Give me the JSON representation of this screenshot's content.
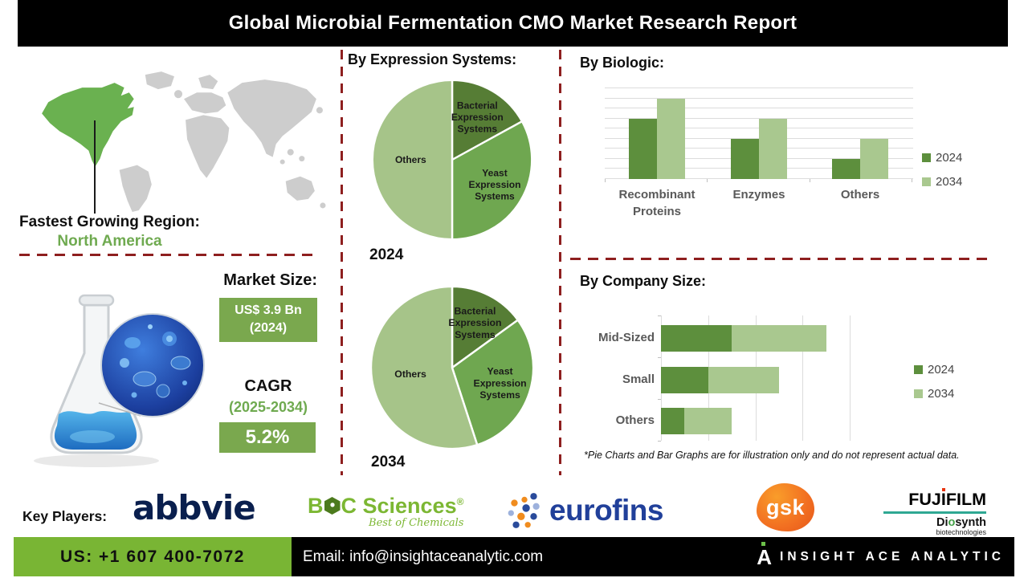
{
  "title": "Global Microbial Fermentation CMO Market Research Report",
  "region": {
    "label": "Fastest Growing Region:",
    "value": "North America"
  },
  "market": {
    "heading": "Market Size:",
    "size_value": "US$ 3.9 Bn",
    "size_year": "(2024)",
    "cagr_label": "CAGR",
    "cagr_period": "(2025-2034)",
    "cagr_value": "5.2%"
  },
  "sections": {
    "expression": "By Expression Systems:",
    "biologic": "By Biologic:",
    "company": "By Company Size:"
  },
  "disclaimer": "*Pie Charts and Bar Graphs are for illustration only and do not represent actual data.",
  "key_players": {
    "label": "Key Players:",
    "abbvie": "abbvie",
    "boc_b": "B",
    "boc_c": "C Sciences",
    "boc_reg": "®",
    "boc_tagline": "Best of Chemicals",
    "eurofins": "eurofins",
    "gsk": "gsk",
    "fuji_a": "FUJ",
    "fuji_i": "I",
    "fuji_b": "FILM",
    "diosynth_a": "Di",
    "diosynth_o": "o",
    "diosynth_b": "synth",
    "diosynth_sub": "biotechnologies"
  },
  "footer": {
    "phone": "US: +1 607 400-7072",
    "email": "Email: info@insightaceanalytic.com",
    "brand": "INSIGHT ACE ANALYTIC",
    "logo_letter": "A"
  },
  "colors": {
    "pie_green_dark": "#567d35",
    "pie_green_mid": "#6fa750",
    "pie_green_light": "#a6c489",
    "bar_green_2024": "#5d8f3d",
    "bar_green_2034": "#a9c88f",
    "divider_red": "#8e1f1f",
    "footer_green": "#79b534",
    "box_green": "#7aa84e",
    "map_region_green": "#6ab150",
    "map_gray": "#cdcdcd"
  },
  "chart_data": [
    {
      "type": "pie",
      "title": "By Expression Systems — 2024",
      "year_label": "2024",
      "slices": [
        {
          "label": "Bacterial Expression Systems",
          "value": 17,
          "color": "#567d35"
        },
        {
          "label": "Yeast Expression Systems",
          "value": 33,
          "color": "#6fa750"
        },
        {
          "label": "Others",
          "value": 50,
          "color": "#a6c489"
        }
      ],
      "note": "illustration only"
    },
    {
      "type": "pie",
      "title": "By Expression Systems — 2034",
      "year_label": "2034",
      "slices": [
        {
          "label": "Bacterial Expression Systems",
          "value": 15,
          "color": "#567d35"
        },
        {
          "label": "Yeast Expression Systems",
          "value": 30,
          "color": "#6fa750"
        },
        {
          "label": "Others",
          "value": 55,
          "color": "#a6c489"
        }
      ],
      "note": "illustration only"
    },
    {
      "type": "bar",
      "title": "By Biologic:",
      "categories": [
        "Recombinant Proteins",
        "Enzymes",
        "Others"
      ],
      "series": [
        {
          "name": "2024",
          "color": "#5d8f3d",
          "values": [
            6,
            4,
            2
          ]
        },
        {
          "name": "2034",
          "color": "#a9c88f",
          "values": [
            8,
            6,
            4
          ]
        }
      ],
      "ylim": [
        0,
        9
      ],
      "grid": true,
      "legend_position": "right",
      "note": "illustration only"
    },
    {
      "type": "bar",
      "orientation": "horizontal",
      "stacked": true,
      "title": "By Company Size:",
      "categories": [
        "Mid-Sized",
        "Small",
        "Others"
      ],
      "series": [
        {
          "name": "2024",
          "color": "#5d8f3d",
          "values": [
            1.5,
            1,
            0.5
          ]
        },
        {
          "name": "2034",
          "color": "#a9c88f",
          "values": [
            2,
            1.5,
            1
          ]
        }
      ],
      "xlim": [
        0,
        4
      ],
      "grid": true,
      "legend_position": "right",
      "note": "illustration only"
    }
  ]
}
